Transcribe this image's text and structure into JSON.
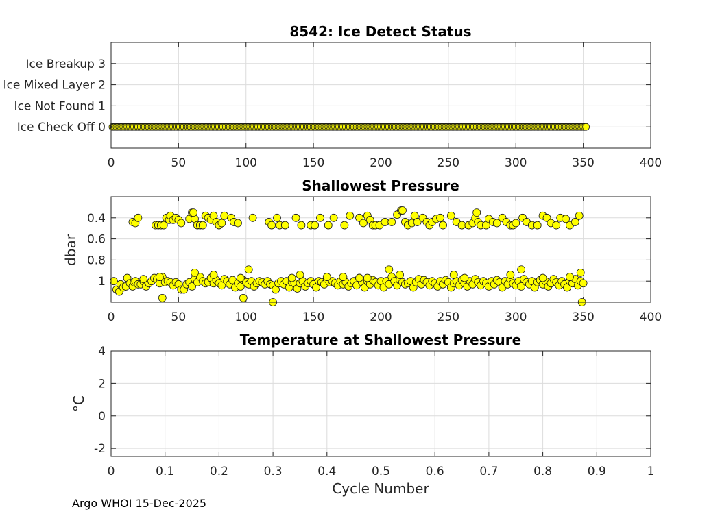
{
  "chart_data": [
    {
      "id": "ice",
      "type": "scatter",
      "title": "8542: Ice Detect Status",
      "xlabel": "",
      "ylabel": "",
      "xlim": [
        0,
        400
      ],
      "ylim": [
        -1,
        4
      ],
      "y_reversed": false,
      "xticks": [
        0,
        50,
        100,
        150,
        200,
        250,
        300,
        350,
        400
      ],
      "xtick_labels": [
        "0",
        "50",
        "100",
        "150",
        "200",
        "250",
        "300",
        "350",
        "400"
      ],
      "yticks": [
        0,
        1,
        2,
        3
      ],
      "ytick_labels": [
        "Ice Check Off 0",
        "Ice Not Found 1",
        "Ice Mixed Layer 2",
        "Ice Breakup 3"
      ],
      "grid": true,
      "marker_color": "#ffff00",
      "x_range": [
        1,
        352
      ],
      "constant_y": 0
    },
    {
      "id": "pres",
      "type": "scatter",
      "title": "Shallowest Pressure",
      "xlabel": "",
      "ylabel": "dbar",
      "xlim": [
        0,
        400
      ],
      "ylim": [
        0.2,
        1.2
      ],
      "y_reversed": true,
      "xticks": [
        0,
        50,
        100,
        150,
        200,
        250,
        300,
        350,
        400
      ],
      "xtick_labels": [
        "0",
        "50",
        "100",
        "150",
        "200",
        "250",
        "300",
        "350",
        "400"
      ],
      "yticks": [
        0.4,
        0.6,
        0.8,
        1.0
      ],
      "ytick_labels": [
        "0.4",
        "0.6",
        "0.8",
        "1"
      ],
      "grid": true,
      "marker_color": "#ffff00",
      "points": [
        [
          2,
          1.0
        ],
        [
          4,
          1.08
        ],
        [
          6,
          1.1
        ],
        [
          7,
          1.03
        ],
        [
          9,
          1.06
        ],
        [
          11,
          1.05
        ],
        [
          12,
          0.97
        ],
        [
          14,
          1.02
        ],
        [
          16,
          1.05
        ],
        [
          17,
          1.01
        ],
        [
          18,
          1.0
        ],
        [
          20,
          1.03
        ],
        [
          22,
          1.03
        ],
        [
          24,
          1.0
        ],
        [
          26,
          1.05
        ],
        [
          28,
          1.02
        ],
        [
          30,
          1.0
        ],
        [
          32,
          0.97
        ],
        [
          34,
          0.98
        ],
        [
          36,
          1.02
        ],
        [
          38,
          0.96
        ],
        [
          40,
          1.01
        ],
        [
          42,
          1.0
        ],
        [
          44,
          1.01
        ],
        [
          46,
          1.04
        ],
        [
          48,
          1.01
        ],
        [
          50,
          1.03
        ],
        [
          52,
          1.08
        ],
        [
          54,
          1.08
        ],
        [
          56,
          1.03
        ],
        [
          58,
          1.01
        ],
        [
          60,
          1.05
        ],
        [
          62,
          0.98
        ],
        [
          64,
          1.01
        ],
        [
          66,
          0.96
        ],
        [
          68,
          1.0
        ],
        [
          70,
          1.02
        ],
        [
          72,
          1.01
        ],
        [
          74,
          0.97
        ],
        [
          76,
          1.02
        ],
        [
          78,
          0.99
        ],
        [
          80,
          1.02
        ],
        [
          82,
          1.04
        ],
        [
          84,
          0.98
        ],
        [
          86,
          1.0
        ],
        [
          88,
          1.03
        ],
        [
          90,
          0.99
        ],
        [
          92,
          1.06
        ],
        [
          94,
          1.02
        ],
        [
          96,
          1.05
        ],
        [
          98,
          0.99
        ],
        [
          100,
          1.01
        ],
        [
          102,
          1.03
        ],
        [
          104,
          1.0
        ],
        [
          106,
          1.05
        ],
        [
          108,
          1.02
        ],
        [
          110,
          1.0
        ],
        [
          112,
          1.01
        ],
        [
          114,
          1.03
        ],
        [
          116,
          1.0
        ],
        [
          118,
          1.03
        ],
        [
          120,
          1.04
        ],
        [
          122,
          1.08
        ],
        [
          124,
          1.02
        ],
        [
          126,
          1.0
        ],
        [
          128,
          1.03
        ],
        [
          130,
          1.0
        ],
        [
          132,
          1.06
        ],
        [
          134,
          1.01
        ],
        [
          136,
          1.02
        ],
        [
          138,
          1.07
        ],
        [
          140,
          1.02
        ],
        [
          142,
          1.0
        ],
        [
          144,
          1.05
        ],
        [
          146,
          1.02
        ],
        [
          148,
          1.0
        ],
        [
          150,
          1.03
        ],
        [
          152,
          1.06
        ],
        [
          154,
          1.0
        ],
        [
          156,
          1.01
        ],
        [
          158,
          1.03
        ],
        [
          160,
          0.98
        ],
        [
          162,
          1.01
        ],
        [
          164,
          1.0
        ],
        [
          166,
          1.02
        ],
        [
          168,
          1.04
        ],
        [
          170,
          1.0
        ],
        [
          172,
          1.03
        ],
        [
          174,
          1.01
        ],
        [
          176,
          1.05
        ],
        [
          178,
          1.02
        ],
        [
          180,
          1.0
        ],
        [
          182,
          1.04
        ],
        [
          184,
          0.97
        ],
        [
          186,
          1.01
        ],
        [
          188,
          1.06
        ],
        [
          190,
          1.0
        ],
        [
          192,
          1.03
        ],
        [
          194,
          0.99
        ],
        [
          196,
          1.01
        ],
        [
          198,
          1.04
        ],
        [
          200,
          1.0
        ],
        [
          202,
          1.06
        ],
        [
          204,
          1.0
        ],
        [
          206,
          1.03
        ],
        [
          208,
          0.96
        ],
        [
          210,
          1.0
        ],
        [
          212,
          1.04
        ],
        [
          214,
          0.99
        ],
        [
          216,
          1.01
        ],
        [
          218,
          1.03
        ],
        [
          220,
          1.02
        ],
        [
          222,
          1.0
        ],
        [
          224,
          1.06
        ],
        [
          226,
          1.01
        ],
        [
          228,
          0.98
        ],
        [
          230,
          1.03
        ],
        [
          232,
          0.99
        ],
        [
          234,
          1.01
        ],
        [
          236,
          1.04
        ],
        [
          238,
          1.0
        ],
        [
          240,
          1.02
        ],
        [
          242,
          1.05
        ],
        [
          244,
          1.0
        ],
        [
          246,
          1.03
        ],
        [
          248,
          0.99
        ],
        [
          250,
          1.01
        ],
        [
          252,
          1.06
        ],
        [
          254,
          1.02
        ],
        [
          256,
          1.0
        ],
        [
          258,
          1.04
        ],
        [
          260,
          0.99
        ],
        [
          262,
          1.02
        ],
        [
          264,
          1.05
        ],
        [
          266,
          1.0
        ],
        [
          268,
          1.03
        ],
        [
          270,
          0.98
        ],
        [
          272,
          1.01
        ],
        [
          274,
          1.04
        ],
        [
          276,
          1.0
        ],
        [
          278,
          1.02
        ],
        [
          280,
          1.05
        ],
        [
          282,
          1.0
        ],
        [
          284,
          1.03
        ],
        [
          286,
          0.99
        ],
        [
          288,
          1.01
        ],
        [
          290,
          1.06
        ],
        [
          292,
          1.0
        ],
        [
          294,
          1.03
        ],
        [
          296,
          0.98
        ],
        [
          298,
          1.02
        ],
        [
          300,
          1.04
        ],
        [
          302,
          1.0
        ],
        [
          304,
          1.05
        ],
        [
          306,
          0.98
        ],
        [
          308,
          1.01
        ],
        [
          310,
          1.03
        ],
        [
          312,
          1.0
        ],
        [
          314,
          1.06
        ],
        [
          316,
          1.01
        ],
        [
          318,
          0.99
        ],
        [
          320,
          1.03
        ],
        [
          322,
          1.0
        ],
        [
          324,
          1.05
        ],
        [
          326,
          1.02
        ],
        [
          328,
          0.98
        ],
        [
          330,
          1.01
        ],
        [
          332,
          1.04
        ],
        [
          334,
          1.0
        ],
        [
          336,
          1.03
        ],
        [
          338,
          1.06
        ],
        [
          340,
          1.0
        ],
        [
          342,
          1.02
        ],
        [
          344,
          0.98
        ],
        [
          346,
          1.04
        ],
        [
          348,
          1.0
        ],
        [
          350,
          1.02
        ],
        [
          98,
          1.16
        ],
        [
          38,
          1.16
        ],
        [
          120,
          1.2
        ],
        [
          349,
          1.2
        ],
        [
          24,
          0.98
        ],
        [
          36,
          0.96
        ],
        [
          62,
          0.92
        ],
        [
          76,
          0.94
        ],
        [
          96,
          0.97
        ],
        [
          102,
          0.89
        ],
        [
          134,
          0.97
        ],
        [
          140,
          0.94
        ],
        [
          160,
          0.96
        ],
        [
          172,
          0.96
        ],
        [
          184,
          0.97
        ],
        [
          190,
          0.97
        ],
        [
          206,
          0.89
        ],
        [
          214,
          0.94
        ],
        [
          254,
          0.94
        ],
        [
          262,
          0.97
        ],
        [
          296,
          0.94
        ],
        [
          304,
          0.89
        ],
        [
          320,
          0.97
        ],
        [
          340,
          0.96
        ],
        [
          348,
          0.92
        ],
        [
          16,
          0.44
        ],
        [
          18,
          0.45
        ],
        [
          20,
          0.4
        ],
        [
          33,
          0.47
        ],
        [
          35,
          0.47
        ],
        [
          37,
          0.47
        ],
        [
          39,
          0.47
        ],
        [
          41,
          0.4
        ],
        [
          43,
          0.42
        ],
        [
          44,
          0.38
        ],
        [
          46,
          0.42
        ],
        [
          48,
          0.4
        ],
        [
          50,
          0.42
        ],
        [
          52,
          0.45
        ],
        [
          58,
          0.41
        ],
        [
          60,
          0.35
        ],
        [
          62,
          0.41
        ],
        [
          64,
          0.47
        ],
        [
          66,
          0.47
        ],
        [
          68,
          0.47
        ],
        [
          70,
          0.38
        ],
        [
          72,
          0.4
        ],
        [
          74,
          0.42
        ],
        [
          76,
          0.38
        ],
        [
          78,
          0.44
        ],
        [
          80,
          0.47
        ],
        [
          82,
          0.45
        ],
        [
          84,
          0.38
        ],
        [
          89,
          0.4
        ],
        [
          91,
          0.44
        ],
        [
          94,
          0.45
        ],
        [
          105,
          0.4
        ],
        [
          117,
          0.44
        ],
        [
          119,
          0.47
        ],
        [
          123,
          0.4
        ],
        [
          125,
          0.47
        ],
        [
          129,
          0.47
        ],
        [
          137,
          0.4
        ],
        [
          141,
          0.47
        ],
        [
          148,
          0.47
        ],
        [
          151,
          0.47
        ],
        [
          155,
          0.4
        ],
        [
          161,
          0.47
        ],
        [
          165,
          0.4
        ],
        [
          173,
          0.47
        ],
        [
          177,
          0.38
        ],
        [
          184,
          0.4
        ],
        [
          187,
          0.45
        ],
        [
          190,
          0.38
        ],
        [
          192,
          0.42
        ],
        [
          194,
          0.47
        ],
        [
          196,
          0.47
        ],
        [
          199,
          0.47
        ],
        [
          203,
          0.44
        ],
        [
          208,
          0.44
        ],
        [
          212,
          0.37
        ],
        [
          215,
          0.33
        ],
        [
          218,
          0.44
        ],
        [
          220,
          0.47
        ],
        [
          223,
          0.45
        ],
        [
          225,
          0.38
        ],
        [
          227,
          0.44
        ],
        [
          231,
          0.4
        ],
        [
          234,
          0.44
        ],
        [
          236,
          0.47
        ],
        [
          238,
          0.44
        ],
        [
          241,
          0.41
        ],
        [
          244,
          0.4
        ],
        [
          246,
          0.47
        ],
        [
          252,
          0.38
        ],
        [
          256,
          0.44
        ],
        [
          260,
          0.47
        ],
        [
          265,
          0.47
        ],
        [
          268,
          0.45
        ],
        [
          270,
          0.4
        ],
        [
          272,
          0.44
        ],
        [
          274,
          0.47
        ],
        [
          278,
          0.47
        ],
        [
          280,
          0.41
        ],
        [
          283,
          0.44
        ],
        [
          286,
          0.45
        ],
        [
          290,
          0.4
        ],
        [
          293,
          0.44
        ],
        [
          296,
          0.47
        ],
        [
          298,
          0.47
        ],
        [
          300,
          0.45
        ],
        [
          305,
          0.4
        ],
        [
          308,
          0.44
        ],
        [
          312,
          0.47
        ],
        [
          316,
          0.47
        ],
        [
          320,
          0.38
        ],
        [
          323,
          0.4
        ],
        [
          326,
          0.45
        ],
        [
          330,
          0.47
        ],
        [
          333,
          0.4
        ],
        [
          337,
          0.41
        ],
        [
          340,
          0.47
        ],
        [
          344,
          0.44
        ],
        [
          347,
          0.38
        ],
        [
          61,
          0.35
        ],
        [
          216,
          0.33
        ],
        [
          271,
          0.35
        ]
      ]
    },
    {
      "id": "temp",
      "type": "scatter",
      "title": "Temperature at Shallowest Pressure",
      "xlabel": "Cycle Number",
      "ylabel": "°C",
      "xlim": [
        0,
        1
      ],
      "ylim": [
        -2.5,
        4
      ],
      "y_reversed": false,
      "xticks": [
        0,
        0.1,
        0.2,
        0.3,
        0.4,
        0.5,
        0.6,
        0.7,
        0.8,
        0.9,
        1
      ],
      "xtick_labels": [
        "0",
        "0.1",
        "0.2",
        "0.3",
        "0.4",
        "0.5",
        "0.6",
        "0.7",
        "0.8",
        "0.9",
        "1"
      ],
      "yticks": [
        -2,
        0,
        2,
        4
      ],
      "ytick_labels": [
        "-2",
        "0",
        "2",
        "4"
      ],
      "grid": true,
      "points": []
    }
  ],
  "footer": {
    "text": "Argo WHOI 15-Dec-2025"
  }
}
